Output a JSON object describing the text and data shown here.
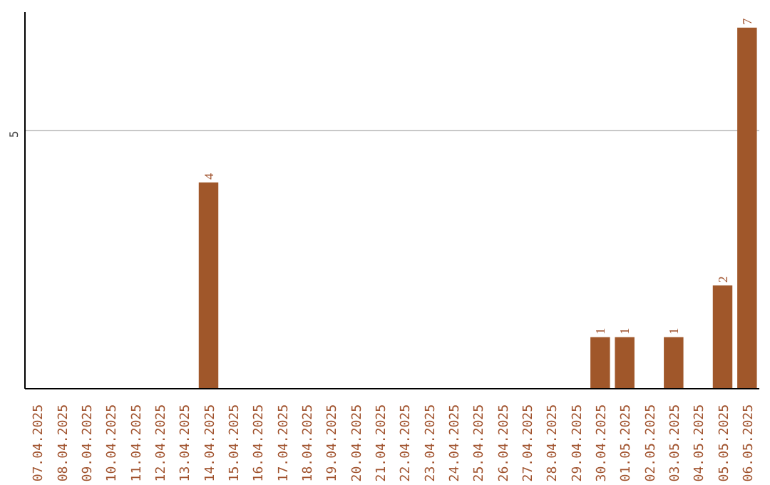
{
  "chart_data": {
    "type": "bar",
    "categories": [
      "07.04.2025",
      "08.04.2025",
      "09.04.2025",
      "10.04.2025",
      "11.04.2025",
      "12.04.2025",
      "13.04.2025",
      "14.04.2025",
      "15.04.2025",
      "16.04.2025",
      "17.04.2025",
      "18.04.2025",
      "19.04.2025",
      "20.04.2025",
      "21.04.2025",
      "22.04.2025",
      "23.04.2025",
      "24.04.2025",
      "25.04.2025",
      "26.04.2025",
      "27.04.2025",
      "28.04.2025",
      "29.04.2025",
      "30.04.2025",
      "01.05.2025",
      "02.05.2025",
      "03.05.2025",
      "04.05.2025",
      "05.05.2025",
      "06.05.2025"
    ],
    "values": [
      0,
      0,
      0,
      0,
      0,
      0,
      0,
      4,
      0,
      0,
      0,
      0,
      0,
      0,
      0,
      0,
      0,
      0,
      0,
      0,
      0,
      0,
      0,
      1,
      1,
      0,
      1,
      0,
      2,
      7
    ],
    "value_labels": [
      null,
      null,
      null,
      null,
      null,
      null,
      null,
      "4",
      null,
      null,
      null,
      null,
      null,
      null,
      null,
      null,
      null,
      null,
      null,
      null,
      null,
      null,
      null,
      "1",
      "1",
      null,
      "1",
      null,
      "2",
      "7"
    ],
    "color": "#a0572a",
    "ylim": [
      0,
      7.3
    ],
    "yticks": [
      5
    ],
    "grid": "y"
  }
}
